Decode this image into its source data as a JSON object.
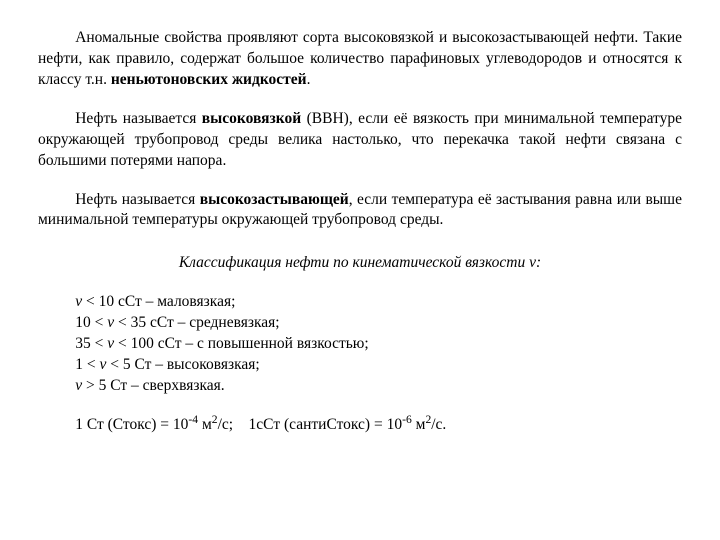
{
  "text_color": "#000000",
  "background_color": "#ffffff",
  "font_family": "Times New Roman",
  "base_fontsize_pt": 12,
  "paragraphs": {
    "p1": {
      "t1": "Аномальные свойства проявляют сорта высоковязкой и высокозастывающей нефти. Такие нефти, как правило, содержат большое количество парафиновых углеводородов и относятся к классу т.н. ",
      "bold1": "неньютоновских жидкостей",
      "t2": "."
    },
    "p2": {
      "t1": "Нефть называется ",
      "bold1": "высоковязкой",
      "t2": " (ВВН), если её вязкость при минимальной температуре окружающей трубопровод среды велика настолько, что перекачка такой нефти связана с большими потерями напора."
    },
    "p3": {
      "t1": "Нефть называется ",
      "bold1": "высокозастывающей",
      "t2": ", если температура её застывания равна или выше минимальной температуры окружающей трубопровод среды."
    }
  },
  "heading": {
    "t1": "Классификация нефти по кинематической вязкости  ",
    "sym": "ν",
    "t2": ":"
  },
  "list": {
    "r1": {
      "sym": "ν",
      "t": " < 10 сСт – маловязкая;"
    },
    "r2": {
      "a": "10 < ",
      "sym": "ν",
      "b": " < 35 сСт – средневязкая;"
    },
    "r3": {
      "a": "35 < ",
      "sym": "ν",
      "b": " < 100 сСт – с повышенной вязкостью;"
    },
    "r4": {
      "a": "1 < ",
      "sym": "ν",
      "b": " < 5 Ст – высоковязкая;"
    },
    "r5": {
      "sym": "ν",
      "t": " > 5 Ст – сверхвязкая."
    }
  },
  "units": {
    "a": "1 Ст (Стокс) = 10",
    "a_sup": "-4",
    "b": " м",
    "b_sup": "2",
    "c": "/с;    1сСт (сантиСтокс) = 10",
    "c_sup": "-6",
    "d": " м",
    "d_sup": "2",
    "e": "/с."
  }
}
